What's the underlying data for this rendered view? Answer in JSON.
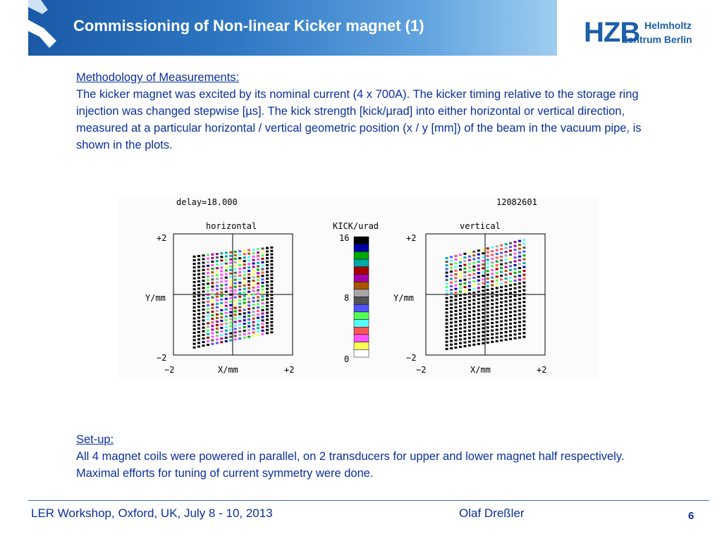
{
  "header": {
    "title": "Commissioning of Non-linear Kicker magnet (1)",
    "colors": {
      "band_start": "#1a5aa8",
      "band_end": "#9fcdf0",
      "text_blue": "#0a2f9c"
    }
  },
  "logo": {
    "letters": "HZB",
    "line1": "Helmholtz",
    "line2": "Zentrum Berlin"
  },
  "methodology": {
    "heading": "Methodology of Measurements:",
    "body": "The kicker magnet was excited by its nominal current (4 x 700A). The kicker timing relative to the storage ring injection was changed stepwise [µs]. The kick strength [kick/µrad] into either horizontal or vertical direction, measured at a particular horizontal / vertical geometric position (x / y [mm]) of the beam in the vacuum pipe, is shown in the plots."
  },
  "figure": {
    "delay_label": "delay=18.000",
    "run_id": "12082601",
    "left_title": "horizontal",
    "right_title": "vertical",
    "scale_title": "KICK/urad",
    "y_label": "Y/mm",
    "x_label": "X/mm",
    "tick_pos": "+2",
    "tick_neg": "−2",
    "scale_top": "16",
    "scale_mid": "8",
    "scale_bottom": "0",
    "scale_colors": [
      "#000000",
      "#0000a8",
      "#00a800",
      "#00a8a8",
      "#a80000",
      "#a800a8",
      "#a85400",
      "#a8a8a8",
      "#545454",
      "#5454fc",
      "#54fc54",
      "#54fcfc",
      "#fc5454",
      "#fc54fc",
      "#fcfc54",
      "#ffffff"
    ]
  },
  "chart_data": [
    {
      "type": "scatter",
      "title": "horizontal",
      "xlabel": "X/mm",
      "ylabel": "Y/mm",
      "xlim": [
        -2,
        2
      ],
      "ylim": [
        -2,
        2
      ],
      "x_range_measured": [
        -1.3,
        1.3
      ],
      "y_range_measured": [
        -1.5,
        1.4
      ],
      "color_scale": "KICK/urad",
      "color_range": [
        0,
        16
      ],
      "grid": true
    },
    {
      "type": "scatter",
      "title": "vertical",
      "xlabel": "X/mm",
      "ylabel": "Y/mm",
      "xlim": [
        -2,
        2
      ],
      "ylim": [
        -2,
        2
      ],
      "x_range_measured": [
        -1.3,
        1.3
      ],
      "y_range_measured": [
        -1.6,
        1.5
      ],
      "color_scale": "KICK/urad",
      "color_range": [
        0,
        16
      ],
      "grid": true
    }
  ],
  "setup": {
    "heading": "Set-up:",
    "body": "All 4 magnet coils were powered in parallel, on 2 transducers for upper and lower magnet half respectively. Maximal efforts for tuning of current symmetry were done."
  },
  "footer": {
    "event": "LER Workshop, Oxford, UK, July 8 - 10, 2013",
    "author": "Olaf Dreßler",
    "page": "6"
  }
}
